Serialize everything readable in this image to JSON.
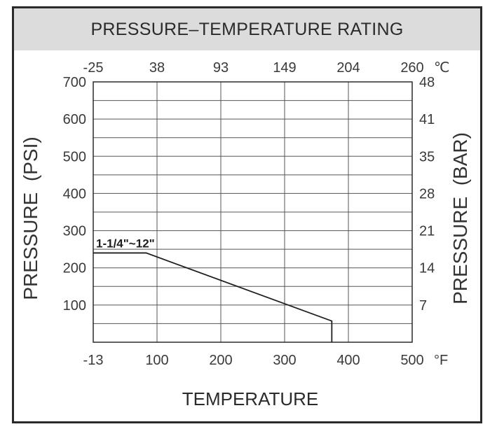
{
  "chart_data": {
    "type": "line",
    "title": "PRESSURE–TEMPERATURE RATING",
    "xlabel": "TEMPERATURE",
    "ylabel": "PRESSURE  (PSI)",
    "ylabel_right": "PRESSURE  (BAR)",
    "x_unit": "°F",
    "x2_unit": "℃",
    "xlim": [
      0,
      500
    ],
    "ylim": [
      0,
      700
    ],
    "x_ticks": [
      "-13",
      "100",
      "200",
      "300",
      "400",
      "500"
    ],
    "x2_ticks": [
      "-25",
      "38",
      "93",
      "149",
      "204",
      "260"
    ],
    "y_ticks": [
      "700",
      "600",
      "500",
      "400",
      "300",
      "200",
      "100"
    ],
    "y2_ticks": [
      "48",
      "41",
      "35",
      "28",
      "21",
      "14",
      "7"
    ],
    "grid": true,
    "series": [
      {
        "name": "1-1/4\"~12\"",
        "x": [
          0,
          83,
          374,
          374
        ],
        "y": [
          240,
          240,
          57,
          0
        ]
      }
    ]
  }
}
